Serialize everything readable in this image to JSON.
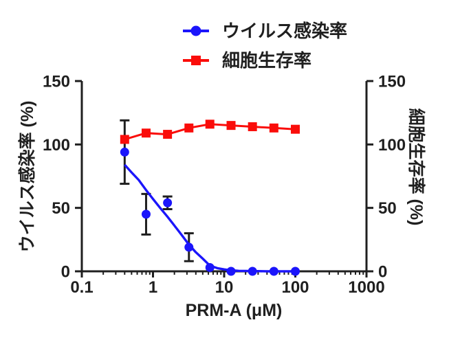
{
  "figure": {
    "background": "#ffffff",
    "text_color": "#1f1f1f",
    "axis_color": "#1f1f1f"
  },
  "legend": {
    "items": [
      {
        "label": "ウイルス感染率",
        "color": "#1b15fb",
        "marker": "circle"
      },
      {
        "label": "細胞生存率",
        "color": "#fa0d0a",
        "marker": "square"
      }
    ]
  },
  "axes": {
    "x": {
      "label": "PRM-A (μM)",
      "scale": "log",
      "min": 0.1,
      "max": 1000,
      "major_ticks": [
        0.1,
        1,
        10,
        100,
        1000
      ],
      "tick_labels": [
        "0.1",
        "1",
        "10",
        "100",
        "1000"
      ]
    },
    "y_left": {
      "label": "ウイルス感染率 (%)",
      "min": 0,
      "max": 150,
      "ticks": [
        0,
        50,
        100,
        150
      ],
      "tick_labels": [
        "0",
        "50",
        "100",
        "150"
      ]
    },
    "y_right": {
      "label": "細胞生存率 (%)",
      "min": 0,
      "max": 150,
      "ticks": [
        0,
        50,
        100,
        150
      ],
      "tick_labels": [
        "0",
        "50",
        "100",
        "150"
      ]
    }
  },
  "chart_data": {
    "type": "line",
    "title": "",
    "xlabel": "PRM-A (μM)",
    "ylabel_left": "ウイルス感染率 (%)",
    "ylabel_right": "細胞生存率 (%)",
    "x_scale": "log",
    "xlim": [
      0.1,
      1000
    ],
    "ylim": [
      0,
      150
    ],
    "grid": false,
    "legend_position": "top-center",
    "x": [
      0.4,
      0.8,
      1.6,
      3.2,
      6.3,
      12.5,
      25,
      50,
      100
    ],
    "series": [
      {
        "name": "ウイルス感染率",
        "axis": "left",
        "color": "#1b15fb",
        "marker": "circle",
        "values": [
          94,
          45,
          54,
          19,
          3,
          0,
          0,
          0,
          0
        ],
        "errors": [
          25,
          16,
          5,
          11,
          0,
          0,
          0,
          0,
          0
        ],
        "fit_curve": {
          "x": [
            0.4,
            0.5,
            0.63,
            0.8,
            1.0,
            1.26,
            1.6,
            2.0,
            2.5,
            3.2,
            4.0,
            5.0,
            6.3,
            8.0,
            10,
            12.5,
            16,
            25,
            40,
            70,
            107
          ],
          "y": [
            84,
            78,
            72,
            64,
            57,
            50,
            43,
            36,
            29,
            21,
            15,
            10,
            4.5,
            2.5,
            1.5,
            0.8,
            0.4,
            0.2,
            0,
            0,
            0
          ]
        }
      },
      {
        "name": "細胞生存率",
        "axis": "right",
        "color": "#fa0d0a",
        "marker": "square",
        "values": [
          104,
          109,
          108,
          113,
          116,
          115,
          114,
          113,
          112
        ],
        "errors": [
          0,
          0,
          0,
          0,
          0,
          0,
          0,
          0,
          0
        ],
        "fit_curve": null
      }
    ]
  }
}
